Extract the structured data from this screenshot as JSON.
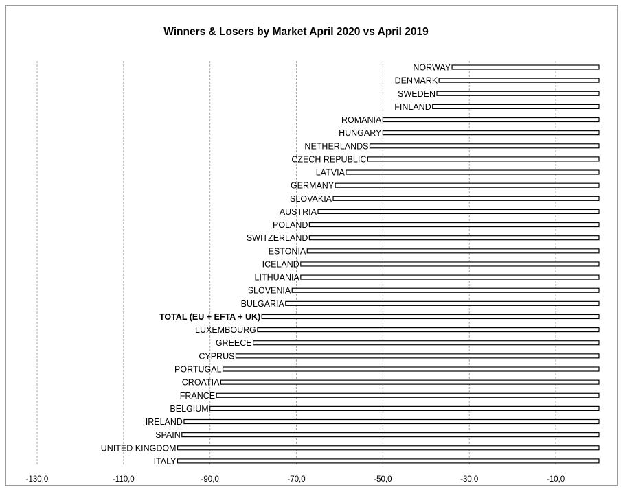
{
  "chart_data": {
    "type": "bar",
    "orientation": "horizontal",
    "title": "Winners & Losers by Market  April 2020 vs April 2019",
    "xlabel": "",
    "ylabel": "",
    "xlim": [
      -130,
      0
    ],
    "x_ticks": [
      -130,
      -110,
      -90,
      -70,
      -50,
      -30,
      -10
    ],
    "x_tick_labels": [
      "-130,0",
      "-110,0",
      "-90,0",
      "-70,0",
      "-50,0",
      "-30,0",
      "-10,0"
    ],
    "grid": "vertical dashed",
    "highlight_category": "TOTAL (EU + EFTA + UK)",
    "bar_fill": "#ffffff",
    "bar_stroke": "#000000",
    "categories": [
      "NORWAY",
      "DENMARK",
      "SWEDEN",
      "FINLAND",
      "ROMANIA",
      "HUNGARY",
      "NETHERLANDS",
      "CZECH REPUBLIC",
      "LATVIA",
      "GERMANY",
      "SLOVAKIA",
      "AUSTRIA",
      "POLAND",
      "SWITZERLAND",
      "ESTONIA",
      "ICELAND",
      "LITHUANIA",
      "SLOVENIA",
      "BULGARIA",
      "TOTAL (EU + EFTA + UK)",
      "LUXEMBOURG",
      "GREECE",
      "CYPRUS",
      "PORTUGAL",
      "CROATIA",
      "FRANCE",
      "BELGIUM",
      "IRELAND",
      "SPAIN",
      "UNITED KINGDOM",
      "ITALY"
    ],
    "values": [
      -34.0,
      -37.0,
      -37.5,
      -38.5,
      -50.0,
      -50.0,
      -53.0,
      -53.5,
      -58.5,
      -61.0,
      -61.5,
      -65.0,
      -67.0,
      -67.0,
      -67.5,
      -69.0,
      -69.0,
      -71.0,
      -72.5,
      -78.0,
      -79.0,
      -80.0,
      -84.0,
      -87.0,
      -87.5,
      -88.5,
      -90.0,
      -96.0,
      -96.5,
      -97.5,
      -97.5
    ]
  }
}
